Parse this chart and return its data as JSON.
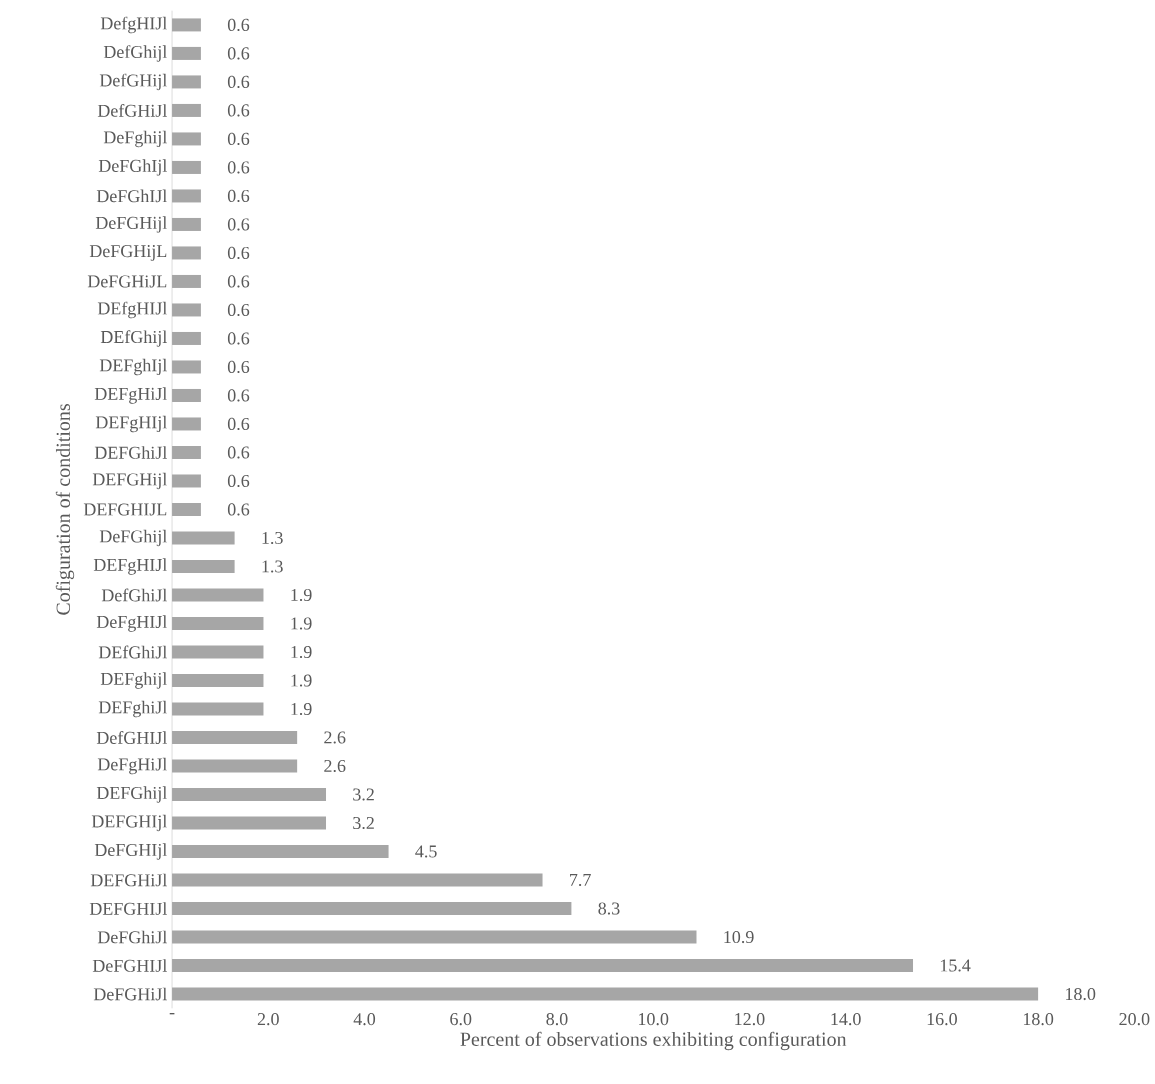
{
  "chart_data": {
    "type": "bar",
    "orientation": "horizontal",
    "xlabel": "Percent of observations exhibiting configuration",
    "ylabel": "Cofiguration of conditions",
    "categories": [
      "DefgHIJl",
      "DefGhijl",
      "DefGHijl",
      "DefGHiJl",
      "DeFghijl",
      "DeFGhIjl",
      "DeFGhIJl",
      "DeFGHijl",
      "DeFGHijL",
      "DeFGHiJL",
      "DEfgHIJl",
      "DEfGhijl",
      "DEFghIjl",
      "DEFgHiJl",
      "DEFgHIjl",
      "DEFGhiJl",
      "DEFGHijl",
      "DEFGHIJL",
      "DeFGhijl",
      "DEFgHIJl",
      "DefGhiJl",
      "DeFgHIJl",
      "DEfGhiJl",
      "DEFghijl",
      "DEFghiJl",
      "DefGHIJl",
      "DeFgHiJl",
      "DEFGhijl",
      "DEFGHIjl",
      "DeFGHIjl",
      "DEFGHiJl",
      "DEFGHIJl",
      "DeFGhiJl",
      "DeFGHIJl",
      "DeFGHiJl"
    ],
    "values": [
      0.6,
      0.6,
      0.6,
      0.6,
      0.6,
      0.6,
      0.6,
      0.6,
      0.6,
      0.6,
      0.6,
      0.6,
      0.6,
      0.6,
      0.6,
      0.6,
      0.6,
      0.6,
      1.3,
      1.3,
      1.9,
      1.9,
      1.9,
      1.9,
      1.9,
      2.6,
      2.6,
      3.2,
      3.2,
      4.5,
      7.7,
      8.3,
      10.9,
      15.4,
      18.0
    ],
    "value_labels": [
      "0.6",
      "0.6",
      "0.6",
      "0.6",
      "0.6",
      "0.6",
      "0.6",
      "0.6",
      "0.6",
      "0.6",
      "0.6",
      "0.6",
      "0.6",
      "0.6",
      "0.6",
      "0.6",
      "0.6",
      "0.6",
      "1.3",
      "1.3",
      "1.9",
      "1.9",
      "1.9",
      "1.9",
      "1.9",
      "2.6",
      "2.6",
      "3.2",
      "3.2",
      "4.5",
      "7.7",
      "8.3",
      "10.9",
      "15.4",
      "18.0"
    ],
    "color": "#a6a6a6",
    "xlim": [
      0,
      20
    ],
    "xticks": [
      {
        "value": 0,
        "label": "-"
      },
      {
        "value": 2,
        "label": "2.0"
      },
      {
        "value": 4,
        "label": "4.0"
      },
      {
        "value": 6,
        "label": "6.0"
      },
      {
        "value": 8,
        "label": "8.0"
      },
      {
        "value": 10,
        "label": "10.0"
      },
      {
        "value": 12,
        "label": "12.0"
      },
      {
        "value": 14,
        "label": "14.0"
      },
      {
        "value": 16,
        "label": "16.0"
      },
      {
        "value": 18,
        "label": "18.0"
      },
      {
        "value": 20,
        "label": "20.0"
      }
    ]
  }
}
